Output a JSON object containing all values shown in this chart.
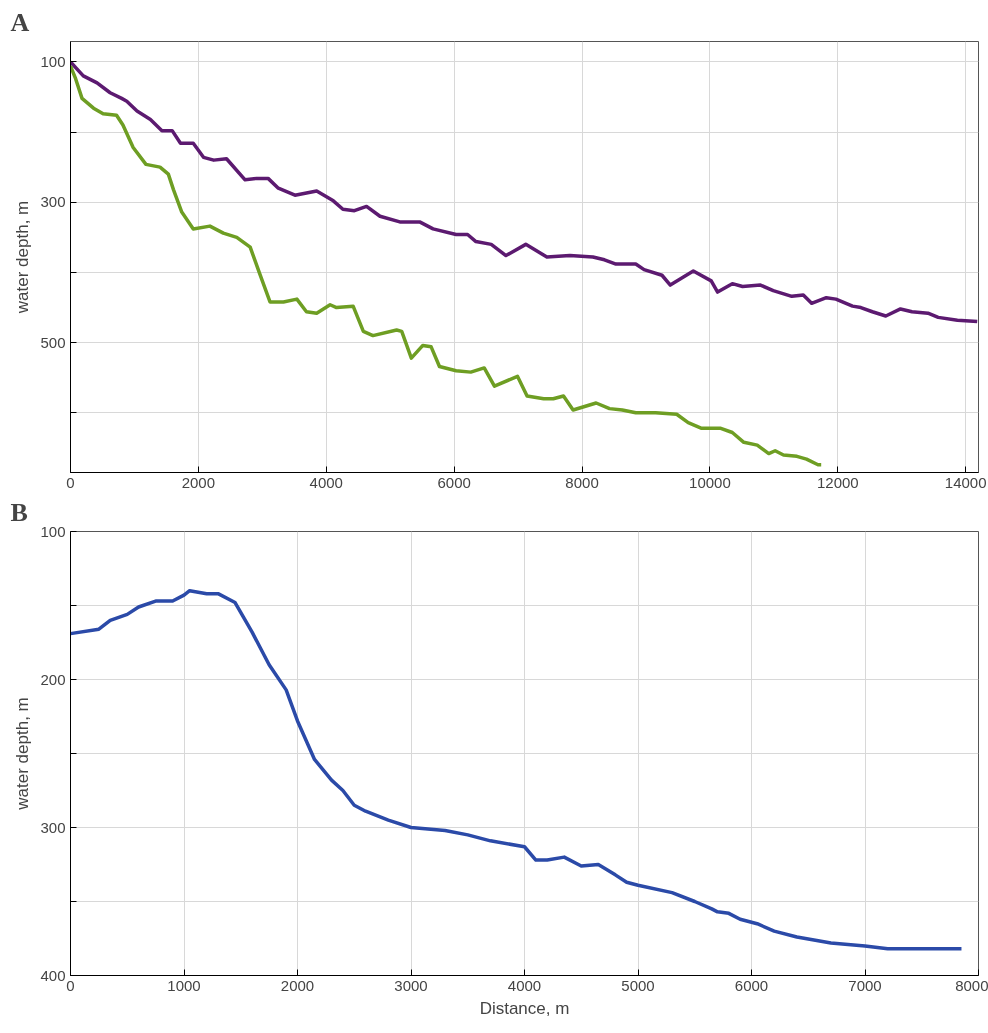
{
  "chart_data": [
    {
      "type": "line",
      "title": "A",
      "ylabel": "water depth, m",
      "xlim": [
        0,
        14200
      ],
      "ylim": [
        685,
        71
      ],
      "xticks": [
        0,
        2000,
        4000,
        6000,
        8000,
        10000,
        12000,
        14000
      ],
      "yticks": [
        100,
        {
          "value": 200,
          "label": null
        },
        300,
        {
          "value": 400,
          "label": null
        },
        500,
        {
          "value": 600,
          "label": null
        }
      ],
      "grid": true,
      "marker": "none",
      "line_style": "solid",
      "series": [
        {
          "color": "#5c1a70",
          "x": [
            0,
            200,
            415,
            620,
            800,
            880,
            1040,
            1250,
            1430,
            1590,
            1720,
            1920,
            2080,
            2240,
            2440,
            2730,
            2910,
            3090,
            3250,
            3510,
            3850,
            4110,
            4260,
            4440,
            4630,
            4840,
            5150,
            5460,
            5670,
            6030,
            6210,
            6340,
            6580,
            6810,
            7120,
            7450,
            7810,
            8170,
            8350,
            8530,
            8840,
            8970,
            9250,
            9380,
            9740,
            10020,
            10120,
            10350,
            10510,
            10790,
            10990,
            11280,
            11460,
            11590,
            11820,
            11970,
            12230,
            12360,
            12540,
            12750,
            12980,
            13160,
            13410,
            13570,
            13870,
            14180
          ],
          "values": [
            100,
            120,
            130,
            144,
            152,
            156,
            170,
            182,
            198,
            198,
            216,
            216,
            236,
            240,
            238,
            268,
            266,
            266,
            280,
            290,
            284,
            298,
            310,
            312,
            306,
            320,
            328,
            328,
            338,
            346,
            346,
            356,
            360,
            376,
            360,
            378,
            376,
            378,
            382,
            388,
            388,
            396,
            404,
            418,
            398,
            412,
            428,
            416,
            420,
            418,
            426,
            434,
            432,
            444,
            436,
            438,
            448,
            450,
            456,
            462,
            452,
            456,
            458,
            464,
            468,
            470
          ]
        },
        {
          "color": "#6e9e23",
          "x": [
            0,
            80,
            180,
            360,
            510,
            720,
            820,
            980,
            1180,
            1400,
            1530,
            1610,
            1740,
            1920,
            2180,
            2390,
            2600,
            2810,
            2960,
            3120,
            3330,
            3540,
            3690,
            3850,
            4060,
            4160,
            4420,
            4580,
            4730,
            5100,
            5180,
            5330,
            5510,
            5640,
            5770,
            6030,
            6260,
            6470,
            6630,
            6990,
            7140,
            7400,
            7550,
            7710,
            7860,
            8220,
            8430,
            8630,
            8840,
            9150,
            9480,
            9660,
            9870,
            10170,
            10350,
            10530,
            10740,
            10920,
            11020,
            11150,
            11360,
            11510,
            11690,
            11740
          ],
          "values": [
            106,
            124,
            152,
            166,
            174,
            176,
            190,
            222,
            246,
            250,
            260,
            282,
            314,
            338,
            334,
            344,
            350,
            364,
            402,
            442,
            442,
            438,
            456,
            458,
            446,
            450,
            448,
            484,
            490,
            482,
            484,
            522,
            504,
            506,
            534,
            540,
            542,
            536,
            562,
            548,
            576,
            580,
            580,
            576,
            596,
            586,
            594,
            596,
            600,
            600,
            602,
            614,
            622,
            622,
            628,
            642,
            646,
            658,
            654,
            660,
            662,
            666,
            674,
            674
          ]
        }
      ]
    },
    {
      "type": "line",
      "title": "B",
      "xlabel": "Distance, m",
      "ylabel": "water depth, m",
      "xlim": [
        0,
        8000
      ],
      "ylim": [
        400,
        100
      ],
      "xticks": [
        0,
        1000,
        2000,
        3000,
        4000,
        5000,
        6000,
        7000,
        8000
      ],
      "yticks": [
        100,
        {
          "value": 150,
          "label": null
        },
        200,
        {
          "value": 250,
          "label": null
        },
        300,
        {
          "value": 350,
          "label": null
        },
        400
      ],
      "grid": true,
      "marker": "none",
      "line_style": "solid",
      "series": [
        {
          "color": "#2b4aa8",
          "x": [
            0,
            250,
            350,
            500,
            600,
            750,
            900,
            1000,
            1050,
            1200,
            1300,
            1450,
            1600,
            1750,
            1900,
            2000,
            2150,
            2300,
            2400,
            2500,
            2600,
            2800,
            3000,
            3300,
            3500,
            3700,
            4000,
            4100,
            4200,
            4350,
            4500,
            4650,
            4800,
            4900,
            5000,
            5300,
            5500,
            5650,
            5700,
            5800,
            5900,
            6050,
            6200,
            6400,
            6700,
            7000,
            7200,
            7500,
            7850
          ],
          "values": [
            169,
            166,
            160,
            156,
            151,
            147,
            147,
            143,
            140,
            142,
            142,
            148,
            168,
            190,
            207,
            228,
            254,
            268,
            275,
            285,
            289,
            295,
            300,
            302,
            305,
            309,
            313,
            322,
            322,
            320,
            326,
            325,
            332,
            337,
            339,
            344,
            350,
            355,
            357,
            358,
            362,
            365,
            370,
            374,
            378,
            380,
            382,
            382,
            382
          ]
        }
      ]
    }
  ]
}
